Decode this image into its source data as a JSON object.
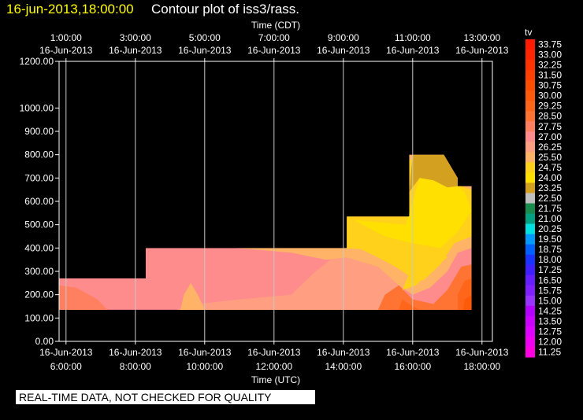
{
  "header": {
    "timestamp": "16-jun-2013,18:00:00",
    "title": "Contour plot of iss3/rass."
  },
  "disclaimer": "REAL-TIME DATA, NOT CHECKED FOR QUALITY",
  "chart_data": {
    "type": "heatmap",
    "title": "Contour plot of iss3/rass.",
    "x_top_label": "Time (CDT)",
    "x_bottom_label": "Time (UTC)",
    "x_range_hours": [
      5.8,
      18.3
    ],
    "ylim": [
      0,
      1200
    ],
    "grid": true,
    "legend_placement": "right",
    "x_top_ticks": [
      {
        "time": "1:00:00",
        "date": "16-Jun-2013",
        "utc": 6
      },
      {
        "time": "3:00:00",
        "date": "16-Jun-2013",
        "utc": 8
      },
      {
        "time": "5:00:00",
        "date": "16-Jun-2013",
        "utc": 10
      },
      {
        "time": "7:00:00",
        "date": "16-Jun-2013",
        "utc": 12
      },
      {
        "time": "9:00:00",
        "date": "16-Jun-2013",
        "utc": 14
      },
      {
        "time": "11:00:00",
        "date": "16-Jun-2013",
        "utc": 16
      },
      {
        "time": "13:00:00",
        "date": "16-Jun-2013",
        "utc": 18
      }
    ],
    "x_bottom_ticks": [
      {
        "time": "6:00:00",
        "date": "16-Jun-2013",
        "utc": 6
      },
      {
        "time": "8:00:00",
        "date": "16-Jun-2013",
        "utc": 8
      },
      {
        "time": "10:00:00",
        "date": "16-Jun-2013",
        "utc": 10
      },
      {
        "time": "12:00:00",
        "date": "16-Jun-2013",
        "utc": 12
      },
      {
        "time": "14:00:00",
        "date": "16-Jun-2013",
        "utc": 14
      },
      {
        "time": "16:00:00",
        "date": "16-Jun-2013",
        "utc": 16
      },
      {
        "time": "18:00:00",
        "date": "16-Jun-2013",
        "utc": 18
      }
    ],
    "y_ticks": [
      {
        "value": 0,
        "label": "0.00"
      },
      {
        "value": 100,
        "label": "100.00"
      },
      {
        "value": 200,
        "label": "200.00"
      },
      {
        "value": 300,
        "label": "300.00"
      },
      {
        "value": 400,
        "label": "400.00"
      },
      {
        "value": 500,
        "label": "500.00"
      },
      {
        "value": 600,
        "label": "600.00"
      },
      {
        "value": 700,
        "label": "700.00"
      },
      {
        "value": 800,
        "label": "800.00"
      },
      {
        "value": 900,
        "label": "900.00"
      },
      {
        "value": 1000,
        "label": "1000.00"
      },
      {
        "value": 1200,
        "label": "1200.00"
      }
    ],
    "colorbar": {
      "title": "tv",
      "levels": [
        {
          "label": "33.75",
          "color": "#ff1a00"
        },
        {
          "label": "33.00",
          "color": "#ff2500"
        },
        {
          "label": "32.25",
          "color": "#ff3300"
        },
        {
          "label": "31.50",
          "color": "#ff4000"
        },
        {
          "label": "30.75",
          "color": "#ff4d00"
        },
        {
          "label": "30.00",
          "color": "#ff5a0a"
        },
        {
          "label": "29.25",
          "color": "#ff661a"
        },
        {
          "label": "28.50",
          "color": "#ff7333"
        },
        {
          "label": "27.75",
          "color": "#ff8060"
        },
        {
          "label": "27.00",
          "color": "#ff8c8c"
        },
        {
          "label": "26.25",
          "color": "#ff9e80"
        },
        {
          "label": "25.50",
          "color": "#ffb366"
        },
        {
          "label": "24.75",
          "color": "#ffd11a"
        },
        {
          "label": "24.00",
          "color": "#ffe000"
        },
        {
          "label": "23.25",
          "color": "#d4a020"
        },
        {
          "label": "22.50",
          "color": "#c0c0c0"
        },
        {
          "label": "21.75",
          "color": "#1a8c4d"
        },
        {
          "label": "21.00",
          "color": "#00a080"
        },
        {
          "label": "20.25",
          "color": "#00e0e0"
        },
        {
          "label": "19.50",
          "color": "#0099ff"
        },
        {
          "label": "18.75",
          "color": "#0060ff"
        },
        {
          "label": "18.00",
          "color": "#1a33ff"
        },
        {
          "label": "17.25",
          "color": "#4020ff"
        },
        {
          "label": "16.50",
          "color": "#6620ff"
        },
        {
          "label": "15.75",
          "color": "#8020ff"
        },
        {
          "label": "15.00",
          "color": "#9933ff"
        },
        {
          "label": "14.25",
          "color": "#b300ff"
        },
        {
          "label": "13.50",
          "color": "#cc00ff"
        },
        {
          "label": "12.75",
          "color": "#e000ff"
        },
        {
          "label": "12.00",
          "color": "#f000f0"
        },
        {
          "label": "11.25",
          "color": "#ff00e0"
        }
      ]
    },
    "coverage": [
      [
        5.8,
        135,
        270
      ],
      [
        8.3,
        135,
        270
      ],
      [
        8.3,
        135,
        400
      ],
      [
        14.1,
        135,
        400
      ],
      [
        14.1,
        135,
        535
      ],
      [
        15.9,
        135,
        535
      ],
      [
        15.9,
        135,
        800
      ],
      [
        16.9,
        135,
        800
      ],
      [
        17.3,
        135,
        700
      ],
      [
        17.3,
        135,
        665
      ],
      [
        17.7,
        135,
        665
      ]
    ],
    "regions": [
      {
        "value": 27.0,
        "polygon": [
          [
            5.8,
            135
          ],
          [
            5.8,
            270
          ],
          [
            8.3,
            270
          ],
          [
            8.3,
            400
          ],
          [
            14.1,
            400
          ],
          [
            14.1,
            535
          ],
          [
            15.9,
            535
          ],
          [
            15.9,
            800
          ],
          [
            16.9,
            800
          ],
          [
            17.3,
            700
          ],
          [
            17.7,
            665
          ],
          [
            17.7,
            135
          ]
        ]
      },
      {
        "value": 26.25,
        "polygon": [
          [
            9.2,
            135
          ],
          [
            9.8,
            160
          ],
          [
            11.0,
            180
          ],
          [
            12.5,
            200
          ],
          [
            13.2,
            300
          ],
          [
            13.8,
            370
          ],
          [
            14.1,
            400
          ],
          [
            14.5,
            390
          ],
          [
            15.2,
            350
          ],
          [
            15.6,
            250
          ],
          [
            15.3,
            135
          ]
        ]
      },
      {
        "value": 25.5,
        "polygon": [
          [
            10.9,
            400
          ],
          [
            12.5,
            380
          ],
          [
            13.5,
            350
          ],
          [
            14.1,
            360
          ],
          [
            15.0,
            320
          ],
          [
            15.6,
            240
          ],
          [
            16.0,
            200
          ],
          [
            16.5,
            230
          ],
          [
            17.0,
            300
          ],
          [
            17.3,
            380
          ],
          [
            17.7,
            400
          ],
          [
            17.7,
            665
          ],
          [
            17.3,
            665
          ],
          [
            17.3,
            700
          ],
          [
            16.9,
            800
          ],
          [
            15.9,
            800
          ],
          [
            15.9,
            535
          ],
          [
            14.1,
            535
          ],
          [
            14.1,
            400
          ]
        ]
      },
      {
        "value": 24.75,
        "polygon": [
          [
            14.0,
            400
          ],
          [
            14.1,
            535
          ],
          [
            15.9,
            535
          ],
          [
            15.9,
            780
          ],
          [
            16.6,
            770
          ],
          [
            17.1,
            680
          ],
          [
            17.7,
            650
          ],
          [
            17.7,
            450
          ],
          [
            17.2,
            420
          ],
          [
            16.8,
            330
          ],
          [
            16.3,
            260
          ],
          [
            15.9,
            280
          ],
          [
            15.5,
            320
          ],
          [
            15.0,
            360
          ],
          [
            14.5,
            395
          ]
        ]
      },
      {
        "value": 24.0,
        "polygon": [
          [
            14.3,
            520
          ],
          [
            15.8,
            500
          ],
          [
            16.2,
            700
          ],
          [
            16.8,
            720
          ],
          [
            17.5,
            640
          ],
          [
            17.7,
            560
          ],
          [
            17.3,
            470
          ],
          [
            16.8,
            400
          ],
          [
            16.0,
            420
          ],
          [
            15.2,
            450
          ]
        ]
      },
      {
        "value": 23.25,
        "polygon": [
          [
            15.9,
            640
          ],
          [
            16.0,
            800
          ],
          [
            16.9,
            800
          ],
          [
            17.3,
            700
          ],
          [
            17.3,
            665
          ],
          [
            17.0,
            660
          ],
          [
            16.6,
            690
          ],
          [
            16.2,
            700
          ]
        ]
      },
      {
        "value": 28.5,
        "polygon": [
          [
            15.0,
            135
          ],
          [
            15.2,
            200
          ],
          [
            15.6,
            240
          ],
          [
            16.0,
            180
          ],
          [
            16.6,
            160
          ],
          [
            17.0,
            220
          ],
          [
            17.4,
            320
          ],
          [
            17.7,
            330
          ],
          [
            17.7,
            135
          ]
        ]
      },
      {
        "value": 29.25,
        "polygon": [
          [
            15.6,
            135
          ],
          [
            15.7,
            180
          ],
          [
            16.0,
            150
          ],
          [
            16.2,
            135
          ]
        ]
      },
      {
        "value": 29.25,
        "polygon": [
          [
            17.3,
            135
          ],
          [
            17.3,
            200
          ],
          [
            17.5,
            260
          ],
          [
            17.7,
            270
          ],
          [
            17.7,
            135
          ]
        ]
      },
      {
        "value": 30.0,
        "polygon": [
          [
            17.45,
            135
          ],
          [
            17.5,
            180
          ],
          [
            17.7,
            200
          ],
          [
            17.7,
            135
          ]
        ]
      },
      {
        "value": 27.75,
        "polygon": [
          [
            5.8,
            135
          ],
          [
            5.8,
            240
          ],
          [
            6.3,
            230
          ],
          [
            6.9,
            180
          ],
          [
            7.2,
            135
          ]
        ]
      },
      {
        "value": 25.5,
        "polygon": [
          [
            9.3,
            135
          ],
          [
            9.4,
            200
          ],
          [
            9.6,
            250
          ],
          [
            9.8,
            200
          ],
          [
            10.0,
            135
          ]
        ]
      },
      {
        "value": 24.75,
        "polygon": [
          [
            15.7,
            220
          ],
          [
            15.9,
            290
          ],
          [
            16.3,
            360
          ],
          [
            16.7,
            400
          ],
          [
            17.0,
            360
          ],
          [
            16.5,
            300
          ],
          [
            16.1,
            240
          ]
        ]
      }
    ]
  }
}
